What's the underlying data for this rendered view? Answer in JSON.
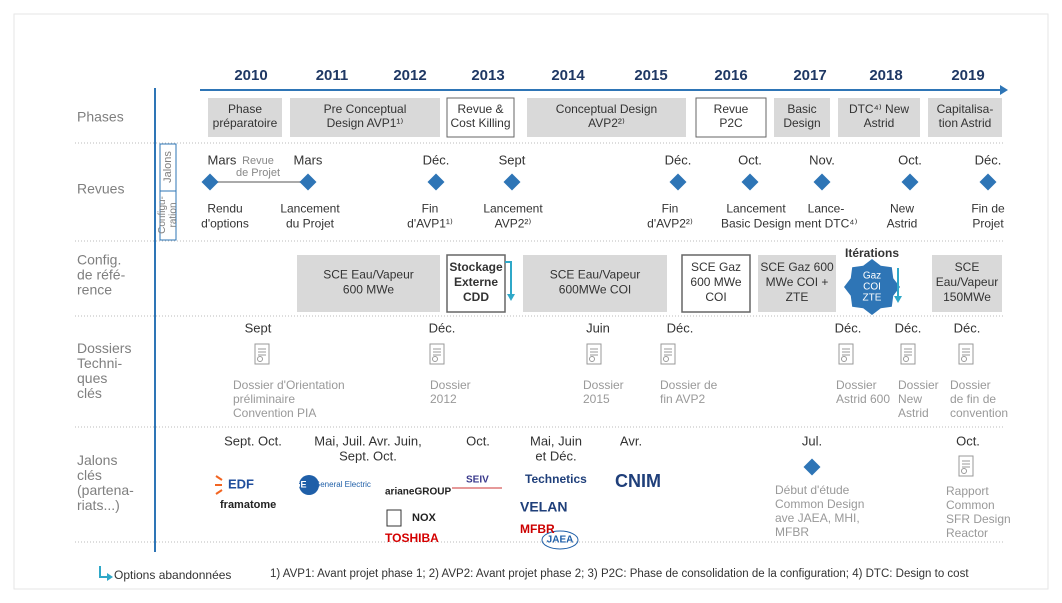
{
  "timeline": {
    "years": [
      "2010",
      "2011",
      "2012",
      "2013",
      "2014",
      "2015",
      "2016",
      "2017",
      "2018",
      "2019"
    ]
  },
  "rows": [
    {
      "lines": [
        "Phases"
      ]
    },
    {
      "lines": [
        "Revues"
      ]
    },
    {
      "lines": [
        "Config.",
        "de réfé-",
        "rence"
      ]
    },
    {
      "lines": [
        "Dossiers",
        "Techni-",
        "ques",
        "clés"
      ]
    },
    {
      "lines": [
        "Jalons",
        "clés",
        "(partena-",
        "riats...)"
      ]
    }
  ],
  "phases": [
    {
      "lines": [
        "Phase",
        "préparatoire"
      ]
    },
    {
      "lines": [
        "Pre Conceptual",
        "Design AVP1¹⁾"
      ]
    },
    {
      "lines": [
        "Revue &",
        "Cost Killing"
      ]
    },
    {
      "lines": [
        "Conceptual Design",
        "AVP2²⁾"
      ]
    },
    {
      "lines": [
        "Revue",
        "P2C"
      ]
    },
    {
      "lines": [
        "Basic",
        "Design"
      ]
    },
    {
      "lines": [
        "DTC⁴⁾ New",
        "Astrid"
      ]
    },
    {
      "lines": [
        "Capitalisa-",
        "tion Astrid"
      ]
    }
  ],
  "reviews": {
    "jalons_label": "Jalons",
    "config_label": [
      "Configu-",
      "ration"
    ],
    "review_note": [
      "Revue",
      "de Projet"
    ],
    "milestones": [
      {
        "date": "Mars",
        "lines": [
          "Rendu",
          "d'options"
        ]
      },
      {
        "date": "Mars",
        "lines": [
          "Lancement",
          "du Projet"
        ]
      },
      {
        "date": "Déc.",
        "lines": [
          "Fin",
          "d'AVP1¹⁾"
        ]
      },
      {
        "date": "Sept",
        "lines": [
          "Lancement",
          "AVP2²⁾"
        ]
      },
      {
        "date": "Déc.",
        "lines": [
          "Fin",
          "d'AVP2²⁾"
        ]
      },
      {
        "date": "Oct.",
        "lines": [
          "Lancement",
          "Basic Design"
        ]
      },
      {
        "date": "Nov.",
        "lines": [
          "Lance-",
          "ment DTC⁴⁾"
        ]
      },
      {
        "date": "Oct.",
        "lines": [
          "New",
          "Astrid"
        ]
      },
      {
        "date": "Déc.",
        "lines": [
          "Fin de",
          "Projet"
        ]
      }
    ]
  },
  "configs": [
    {
      "lines": [
        "SCE Eau/Vapeur",
        "600 MWe"
      ]
    },
    {
      "lines": [
        "Stockage",
        "Externe",
        "CDD"
      ]
    },
    {
      "lines": [
        "SCE Eau/Vapeur",
        "600MWe COI"
      ]
    },
    {
      "lines": [
        "SCE Gaz",
        "600 MWe",
        "COI"
      ]
    },
    {
      "lines": [
        "SCE Gaz 600",
        "MWe COI +",
        "ZTE"
      ]
    },
    {
      "lines": [
        "SCE",
        "Eau/Vapeur",
        "150MWe"
      ]
    }
  ],
  "iterations": {
    "title": "Itérations",
    "lines": [
      "Gaz",
      "COI",
      "ZTE"
    ]
  },
  "dossiers": [
    {
      "date": "Sept",
      "lines": [
        "Dossier d'Orientation",
        "préliminaire",
        "Convention PIA"
      ]
    },
    {
      "date": "Déc.",
      "lines": [
        "Dossier",
        "2012"
      ]
    },
    {
      "date": "Juin",
      "lines": [
        "Dossier",
        "2015"
      ]
    },
    {
      "date": "Déc.",
      "lines": [
        "Dossier de",
        "fin AVP2"
      ]
    },
    {
      "date": "Déc.",
      "lines": [
        "Dossier",
        "Astrid 600"
      ]
    },
    {
      "date": "Déc.",
      "lines": [
        "Dossier",
        "New",
        "Astrid"
      ]
    },
    {
      "date": "Déc.",
      "lines": [
        "Dossier",
        "de fin de",
        "convention"
      ]
    }
  ],
  "partners": [
    {
      "lines": [
        "Sept. Oct."
      ]
    },
    {
      "lines": [
        "Mai, Juil. Avr. Juin,",
        "Sept. Oct."
      ]
    },
    {
      "lines": [
        "Oct."
      ]
    },
    {
      "lines": [
        "Mai, Juin",
        "et Déc."
      ]
    },
    {
      "lines": [
        "Avr."
      ]
    }
  ],
  "study": {
    "date": "Jul.",
    "lines": [
      "Début d'étude",
      "Common Design",
      "ave JAEA, MHI,",
      "MFBR"
    ]
  },
  "report": {
    "date": "Oct.",
    "lines": [
      "Rapport",
      "Common",
      "SFR Design",
      "Reactor"
    ]
  },
  "logos": [
    "EDF",
    "framatome",
    "GE",
    "General Electric",
    "arianeGROUP",
    "NOX",
    "TOSHIBA",
    "SEIV",
    "Technetics",
    "VELAN",
    "MFBR",
    "JAEA",
    "CNIM"
  ],
  "legend": "Options abandonnées",
  "footnote": "1) AVP1: Avant projet phase 1; 2) AVP2: Avant projet phase 2; 3) P2C: Phase de consolidation de la configuration; 4) DTC: Design to cost"
}
